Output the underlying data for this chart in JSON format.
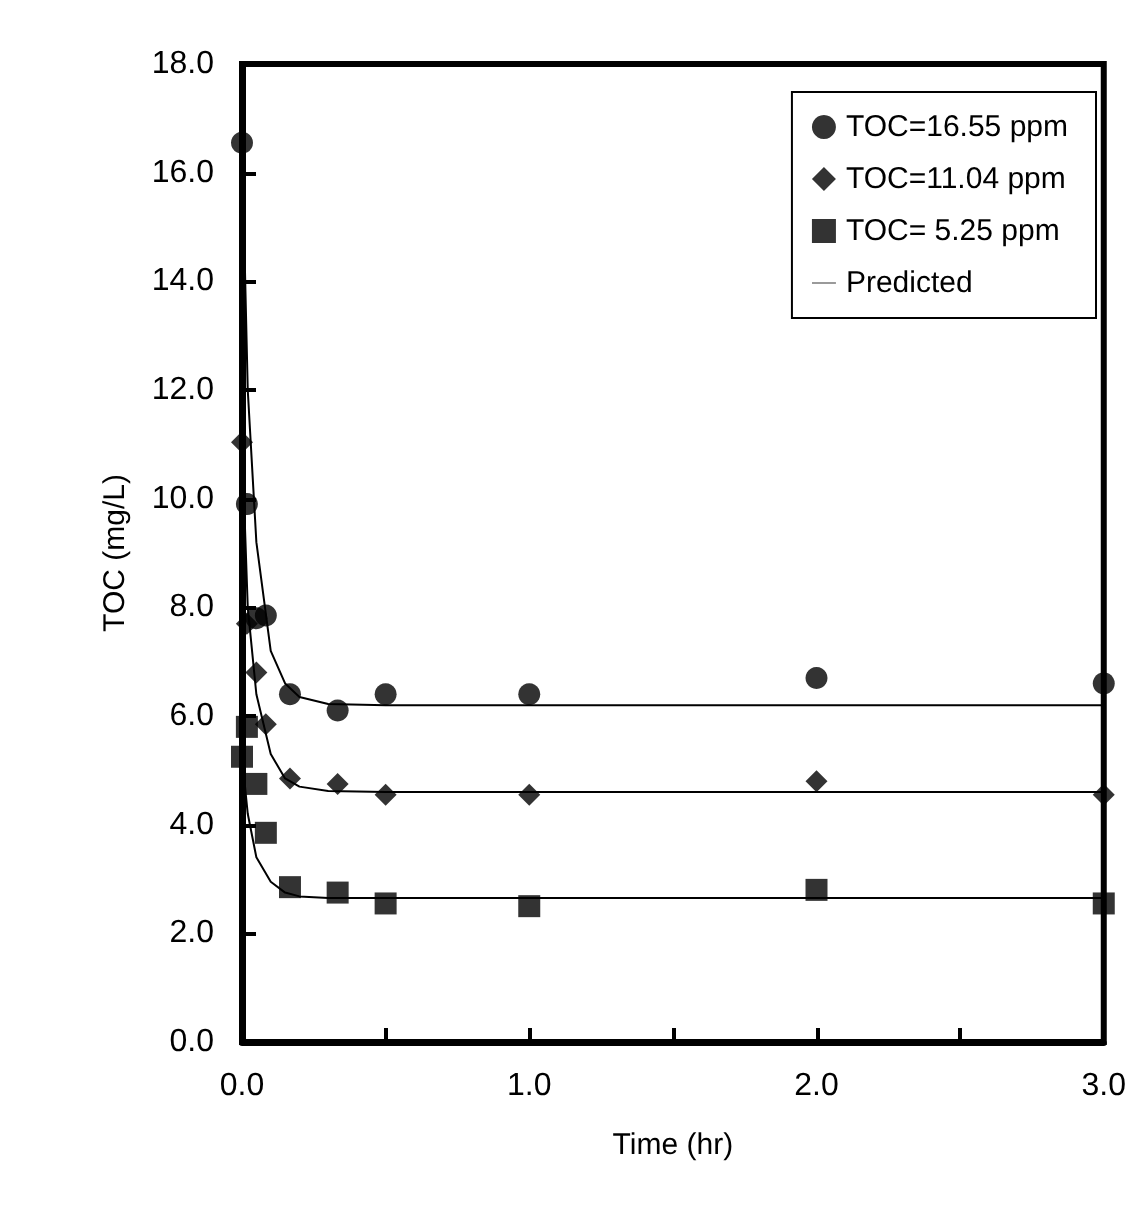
{
  "chart_data": {
    "type": "scatter",
    "xlabel": "Time (hr)",
    "ylabel": "TOC (mg/L)",
    "xlim": [
      0,
      3
    ],
    "xticks": [
      {
        "value": 0,
        "label": "0.0"
      },
      {
        "value": 0.5,
        "label": null
      },
      {
        "value": 1,
        "label": "1.0"
      },
      {
        "value": 1.5,
        "label": null
      },
      {
        "value": 2,
        "label": "2.0"
      },
      {
        "value": 2.5,
        "label": null
      },
      {
        "value": 3,
        "label": "3.0"
      }
    ],
    "ylim": [
      0,
      18
    ],
    "yticks": [
      {
        "value": 0,
        "label": "0.0"
      },
      {
        "value": 2,
        "label": "2.0"
      },
      {
        "value": 4,
        "label": "4.0"
      },
      {
        "value": 6,
        "label": "6.0"
      },
      {
        "value": 8,
        "label": "8.0"
      },
      {
        "value": 10,
        "label": "10.0"
      },
      {
        "value": 12,
        "label": "12.0"
      },
      {
        "value": 14,
        "label": "14.0"
      },
      {
        "value": 16,
        "label": "16.0"
      },
      {
        "value": 18,
        "label": "18.0"
      }
    ],
    "grid": false,
    "legend": "top right",
    "series": [
      {
        "name": "TOC=16.55 ppm",
        "marker": "circle",
        "color": "#000000",
        "x": [
          0,
          0.017,
          0.05,
          0.083,
          0.167,
          0.333,
          0.5,
          1,
          2,
          3
        ],
        "values": [
          16.55,
          9.9,
          7.8,
          7.85,
          6.4,
          6.1,
          6.4,
          6.4,
          6.7,
          6.6
        ]
      },
      {
        "name": "TOC=11.04 ppm",
        "marker": "diamond",
        "color": "#000000",
        "x": [
          0,
          0.017,
          0.05,
          0.083,
          0.167,
          0.333,
          0.5,
          1,
          2,
          3
        ],
        "values": [
          11.04,
          7.7,
          6.8,
          5.85,
          4.85,
          4.75,
          4.55,
          4.55,
          4.8,
          4.55
        ]
      },
      {
        "name": "TOC= 5.25 ppm",
        "marker": "square",
        "color": "#000000",
        "x": [
          0,
          0.017,
          0.05,
          0.083,
          0.167,
          0.333,
          0.5,
          1,
          2,
          3
        ],
        "values": [
          5.25,
          5.8,
          4.75,
          3.85,
          2.85,
          2.75,
          2.55,
          2.5,
          2.8,
          2.55
        ]
      },
      {
        "name": "Predicted",
        "type": "line",
        "marker": "none",
        "line_style": "solid",
        "color": "#000000",
        "x": [
          0,
          0.02,
          0.05,
          0.1,
          0.15,
          0.2,
          0.3,
          0.5,
          3
        ],
        "values": [
          16.55,
          12,
          9.2,
          7.2,
          6.6,
          6.35,
          6.22,
          6.2,
          6.2
        ]
      },
      {
        "type": "line",
        "marker": "none",
        "line_style": "solid",
        "color": "#000000",
        "x": [
          0,
          0.02,
          0.05,
          0.1,
          0.15,
          0.2,
          0.3,
          0.5,
          3
        ],
        "values": [
          11.04,
          8,
          6.4,
          5.3,
          4.85,
          4.7,
          4.62,
          4.6,
          4.6
        ]
      },
      {
        "type": "line",
        "marker": "none",
        "line_style": "solid",
        "color": "#000000",
        "x": [
          0,
          0.02,
          0.05,
          0.1,
          0.15,
          0.2,
          0.3,
          3
        ],
        "values": [
          5.25,
          4.2,
          3.4,
          2.95,
          2.75,
          2.68,
          2.65,
          2.65
        ]
      }
    ]
  }
}
